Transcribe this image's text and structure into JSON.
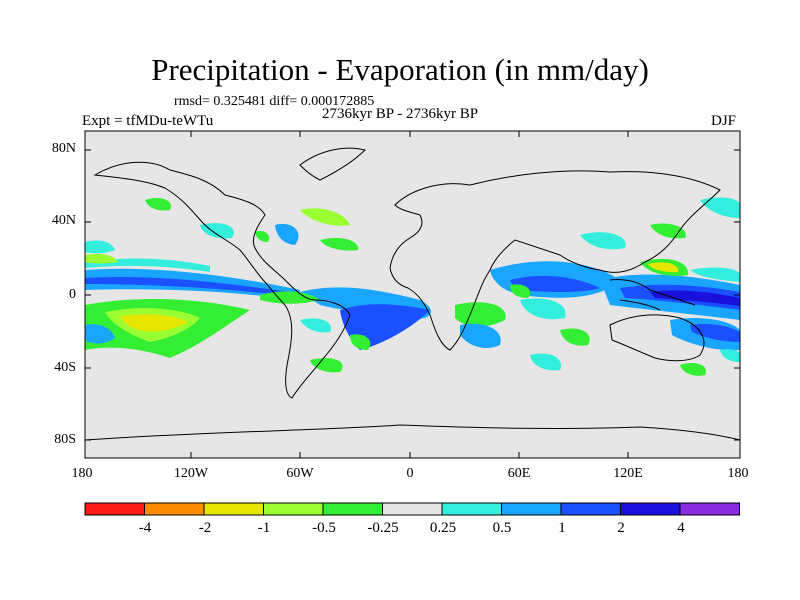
{
  "title": "Precipitation - Evaporation (in mm/day)",
  "stats": "rmsd= 0.325481  diff= 0.000172885",
  "period": "2736kyr BP - 2736kyr BP",
  "experiment": "Expt = tfMDu-teWTu",
  "season": "DJF",
  "lat_labels": [
    "80N",
    "40N",
    "0",
    "40S",
    "80S"
  ],
  "lon_labels": [
    "180",
    "120W",
    "60W",
    "0",
    "60E",
    "120E",
    "180"
  ],
  "colorbar": {
    "colors": [
      "#ff1a1a",
      "#ff8c00",
      "#e6e600",
      "#99ff33",
      "#33ee33",
      "#e6e6e6",
      "#33eedd",
      "#1aa6ff",
      "#1a50ff",
      "#1a10dd",
      "#8a2be2"
    ],
    "labels": [
      "-4",
      "-2",
      "-1",
      "-0.5",
      "-0.25",
      "0.25",
      "0.5",
      "1",
      "2",
      "4"
    ]
  }
}
